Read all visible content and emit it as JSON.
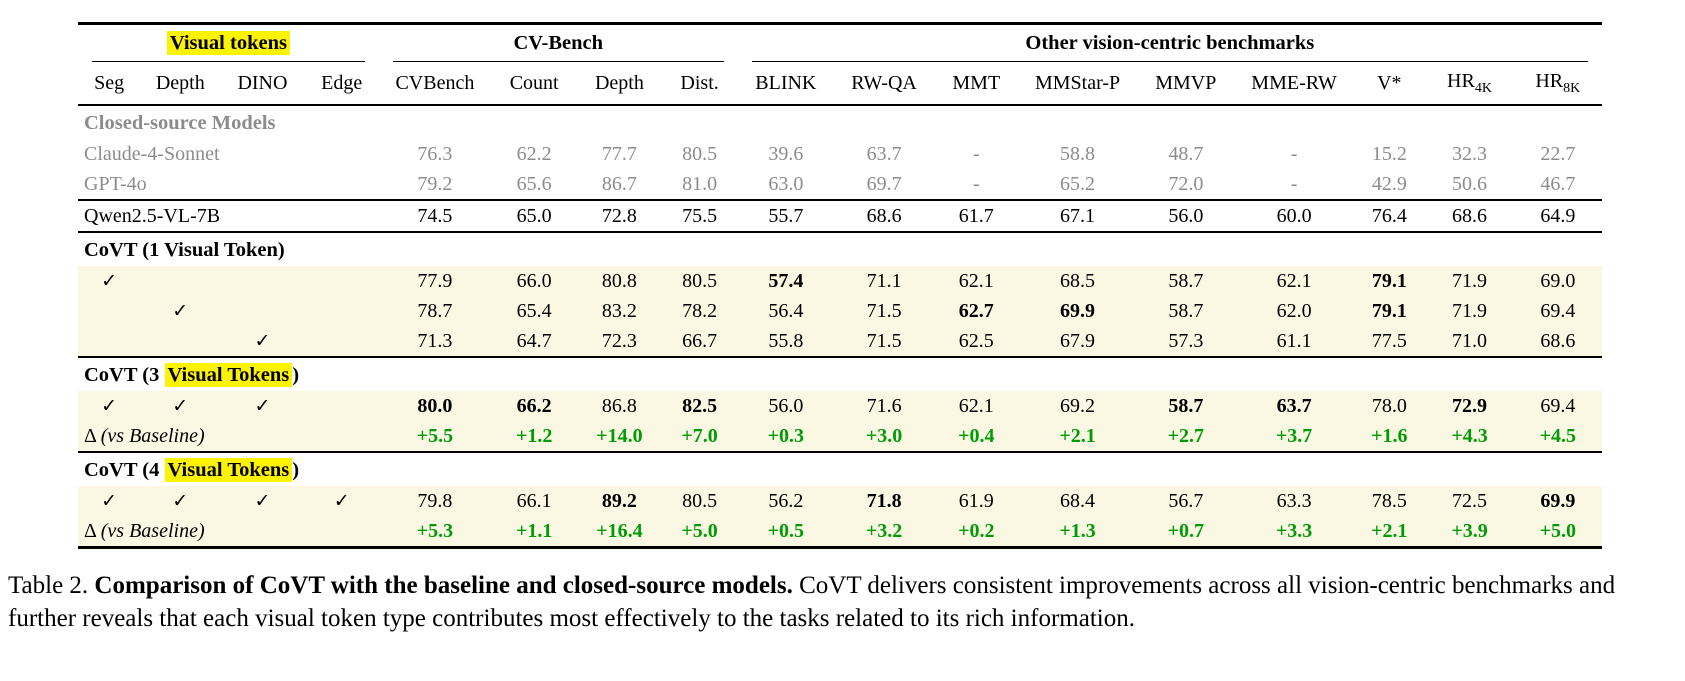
{
  "colors": {
    "highlight_yellow": "#fcf303",
    "row_cream": "#faf7e3",
    "delta_green": "#009c06",
    "gray_text": "#8c8c8c"
  },
  "header": {
    "groups": [
      {
        "label": "Visual tokens",
        "span": 4,
        "highlight": true
      },
      {
        "label": "CV-Bench",
        "span": 4,
        "highlight": false
      },
      {
        "label": "Other vision-centric benchmarks",
        "span": 9,
        "highlight": false
      }
    ],
    "columns": [
      {
        "label": "Seg"
      },
      {
        "label": "Depth"
      },
      {
        "label": "DINO"
      },
      {
        "label": "Edge"
      },
      {
        "label": "CVBench"
      },
      {
        "label": "Count"
      },
      {
        "label": "Depth"
      },
      {
        "label": "Dist."
      },
      {
        "label": "BLINK"
      },
      {
        "label": "RW-QA"
      },
      {
        "label": "MMT"
      },
      {
        "label": "MMStar-P"
      },
      {
        "label": "MMVP"
      },
      {
        "label": "MME-RW"
      },
      {
        "label": "V*"
      },
      {
        "label": "HR",
        "sub": "4K"
      },
      {
        "label": "HR",
        "sub": "8K"
      }
    ]
  },
  "check_glyph": "✓",
  "delta_symbol": "Δ",
  "delta_note": "(vs Baseline)",
  "rows": [
    {
      "kind": "section",
      "prefix": "Closed-source Models",
      "highlight": "",
      "suffix": "",
      "style": "gray"
    },
    {
      "kind": "model",
      "label": "Claude-4-Sonnet",
      "style": "gray",
      "values": [
        "76.3",
        "62.2",
        "77.7",
        "80.5",
        "39.6",
        "63.7",
        "-",
        "58.8",
        "48.7",
        "-",
        "15.2",
        "32.3",
        "22.7"
      ],
      "bold": []
    },
    {
      "kind": "model",
      "label": "GPT-4o",
      "style": "gray",
      "rule_after": true,
      "values": [
        "79.2",
        "65.6",
        "86.7",
        "81.0",
        "63.0",
        "69.7",
        "-",
        "65.2",
        "72.0",
        "-",
        "42.9",
        "50.6",
        "46.7"
      ],
      "bold": []
    },
    {
      "kind": "model",
      "label": "Qwen2.5-VL-7B",
      "style": "black",
      "rule_after": true,
      "values": [
        "74.5",
        "65.0",
        "72.8",
        "75.5",
        "55.7",
        "68.6",
        "61.7",
        "67.1",
        "56.0",
        "60.0",
        "76.4",
        "68.6",
        "64.9"
      ],
      "bold": []
    },
    {
      "kind": "section",
      "prefix": "CoVT (1 Visual Token)",
      "highlight": "",
      "suffix": "",
      "style": "black"
    },
    {
      "kind": "checks",
      "checks": [
        1,
        0,
        0,
        0
      ],
      "bg": "cream",
      "values": [
        "77.9",
        "66.0",
        "80.8",
        "80.5",
        "57.4",
        "71.1",
        "62.1",
        "68.5",
        "58.7",
        "62.1",
        "79.1",
        "71.9",
        "69.0"
      ],
      "bold": [
        4,
        10
      ]
    },
    {
      "kind": "checks",
      "checks": [
        0,
        1,
        0,
        0
      ],
      "bg": "cream",
      "values": [
        "78.7",
        "65.4",
        "83.2",
        "78.2",
        "56.4",
        "71.5",
        "62.7",
        "69.9",
        "58.7",
        "62.0",
        "79.1",
        "71.9",
        "69.4"
      ],
      "bold": [
        6,
        7,
        10
      ]
    },
    {
      "kind": "checks",
      "checks": [
        0,
        0,
        1,
        0
      ],
      "bg": "cream",
      "rule_after": true,
      "values": [
        "71.3",
        "64.7",
        "72.3",
        "66.7",
        "55.8",
        "71.5",
        "62.5",
        "67.9",
        "57.3",
        "61.1",
        "77.5",
        "71.0",
        "68.6"
      ],
      "bold": []
    },
    {
      "kind": "section",
      "prefix": "CoVT (3 ",
      "highlight": "Visual Tokens",
      "suffix": ")",
      "style": "black"
    },
    {
      "kind": "checks",
      "checks": [
        1,
        1,
        1,
        0
      ],
      "bg": "cream",
      "values": [
        "80.0",
        "66.2",
        "86.8",
        "82.5",
        "56.0",
        "71.6",
        "62.1",
        "69.2",
        "58.7",
        "63.7",
        "78.0",
        "72.9",
        "69.4"
      ],
      "bold": [
        0,
        1,
        3,
        8,
        9,
        11
      ]
    },
    {
      "kind": "delta",
      "bg": "cream",
      "rule_after": true,
      "values": [
        "+5.5",
        "+1.2",
        "+14.0",
        "+7.0",
        "+0.3",
        "+3.0",
        "+0.4",
        "+2.1",
        "+2.7",
        "+3.7",
        "+1.6",
        "+4.3",
        "+4.5"
      ]
    },
    {
      "kind": "section",
      "prefix": "CoVT (4 ",
      "highlight": "Visual Tokens",
      "suffix": ")",
      "style": "black"
    },
    {
      "kind": "checks",
      "checks": [
        1,
        1,
        1,
        1
      ],
      "bg": "cream",
      "values": [
        "79.8",
        "66.1",
        "89.2",
        "80.5",
        "56.2",
        "71.8",
        "61.9",
        "68.4",
        "56.7",
        "63.3",
        "78.5",
        "72.5",
        "69.9"
      ],
      "bold": [
        2,
        5,
        12
      ]
    },
    {
      "kind": "delta",
      "bg": "cream",
      "bottom": true,
      "values": [
        "+5.3",
        "+1.1",
        "+16.4",
        "+5.0",
        "+0.5",
        "+3.2",
        "+0.2",
        "+1.3",
        "+0.7",
        "+3.3",
        "+2.1",
        "+3.9",
        "+5.0"
      ]
    }
  ],
  "caption": {
    "label": "Table 2. ",
    "bold": "Comparison of CoVT with the baseline and closed-source models.",
    "rest": " CoVT delivers consistent improvements across all vision-centric benchmarks and further reveals that each visual token type contributes most effectively to the tasks related to its rich information."
  }
}
